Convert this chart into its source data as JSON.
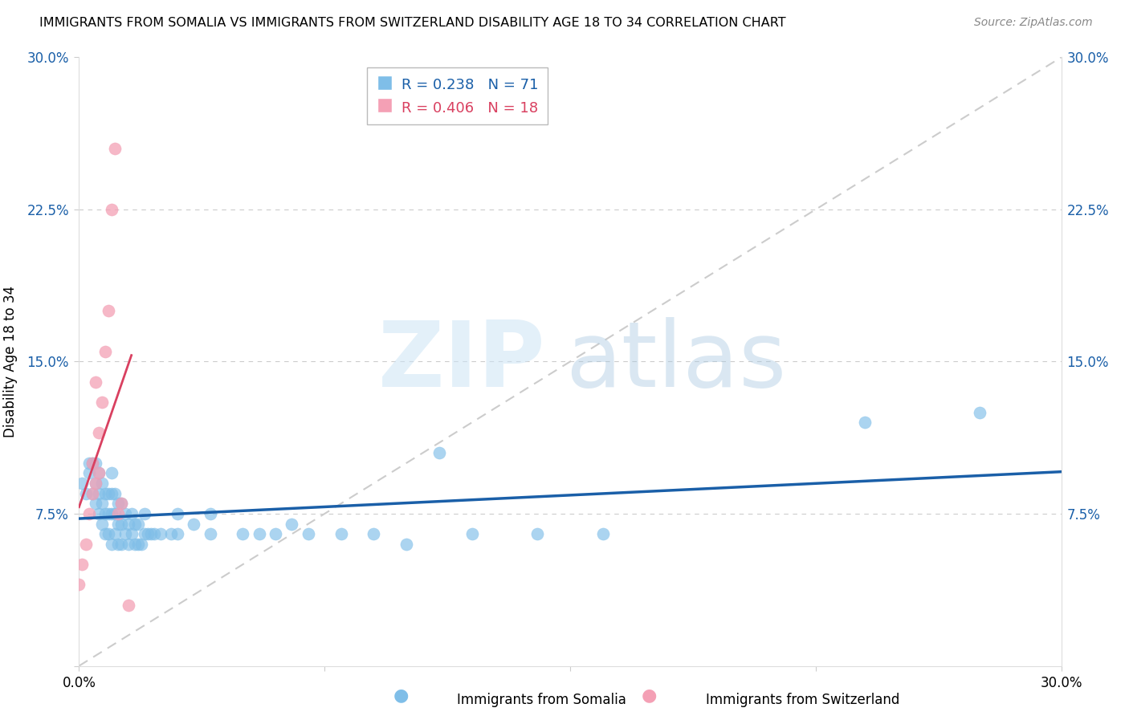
{
  "title": "IMMIGRANTS FROM SOMALIA VS IMMIGRANTS FROM SWITZERLAND DISABILITY AGE 18 TO 34 CORRELATION CHART",
  "source": "Source: ZipAtlas.com",
  "ylabel": "Disability Age 18 to 34",
  "xlim": [
    0.0,
    0.3
  ],
  "ylim": [
    0.0,
    0.3
  ],
  "somalia_color": "#7fbee8",
  "somalia_line_color": "#1a5fa8",
  "switzerland_color": "#f4a0b5",
  "switzerland_line_color": "#d94060",
  "diag_color": "#cccccc",
  "grid_color": "#cccccc",
  "somalia_R": 0.238,
  "somalia_N": 71,
  "switzerland_R": 0.406,
  "switzerland_N": 18,
  "legend_somalia": "Immigrants from Somalia",
  "legend_switzerland": "Immigrants from Switzerland",
  "ytick_labels": [
    "",
    "7.5%",
    "15.0%",
    "22.5%",
    "30.0%"
  ],
  "somalia_x": [
    0.001,
    0.002,
    0.003,
    0.003,
    0.004,
    0.004,
    0.005,
    0.005,
    0.005,
    0.006,
    0.006,
    0.006,
    0.007,
    0.007,
    0.007,
    0.008,
    0.008,
    0.008,
    0.009,
    0.009,
    0.009,
    0.01,
    0.01,
    0.01,
    0.01,
    0.011,
    0.011,
    0.011,
    0.012,
    0.012,
    0.012,
    0.013,
    0.013,
    0.013,
    0.014,
    0.014,
    0.015,
    0.015,
    0.016,
    0.016,
    0.017,
    0.017,
    0.018,
    0.018,
    0.019,
    0.02,
    0.02,
    0.021,
    0.022,
    0.023,
    0.025,
    0.028,
    0.03,
    0.03,
    0.035,
    0.04,
    0.04,
    0.05,
    0.055,
    0.06,
    0.065,
    0.07,
    0.08,
    0.09,
    0.1,
    0.11,
    0.12,
    0.14,
    0.16,
    0.24,
    0.275
  ],
  "somalia_y": [
    0.09,
    0.085,
    0.095,
    0.1,
    0.085,
    0.1,
    0.08,
    0.09,
    0.1,
    0.075,
    0.085,
    0.095,
    0.07,
    0.08,
    0.09,
    0.065,
    0.075,
    0.085,
    0.065,
    0.075,
    0.085,
    0.06,
    0.075,
    0.085,
    0.095,
    0.065,
    0.075,
    0.085,
    0.06,
    0.07,
    0.08,
    0.06,
    0.07,
    0.08,
    0.065,
    0.075,
    0.06,
    0.07,
    0.065,
    0.075,
    0.06,
    0.07,
    0.06,
    0.07,
    0.06,
    0.065,
    0.075,
    0.065,
    0.065,
    0.065,
    0.065,
    0.065,
    0.065,
    0.075,
    0.07,
    0.065,
    0.075,
    0.065,
    0.065,
    0.065,
    0.07,
    0.065,
    0.065,
    0.065,
    0.06,
    0.105,
    0.065,
    0.065,
    0.065,
    0.12,
    0.125
  ],
  "switzerland_x": [
    0.0,
    0.001,
    0.002,
    0.003,
    0.004,
    0.004,
    0.005,
    0.005,
    0.006,
    0.006,
    0.007,
    0.008,
    0.009,
    0.01,
    0.011,
    0.012,
    0.013,
    0.015
  ],
  "switzerland_y": [
    0.04,
    0.05,
    0.06,
    0.075,
    0.085,
    0.1,
    0.09,
    0.14,
    0.095,
    0.115,
    0.13,
    0.155,
    0.175,
    0.225,
    0.255,
    0.075,
    0.08,
    0.03
  ]
}
